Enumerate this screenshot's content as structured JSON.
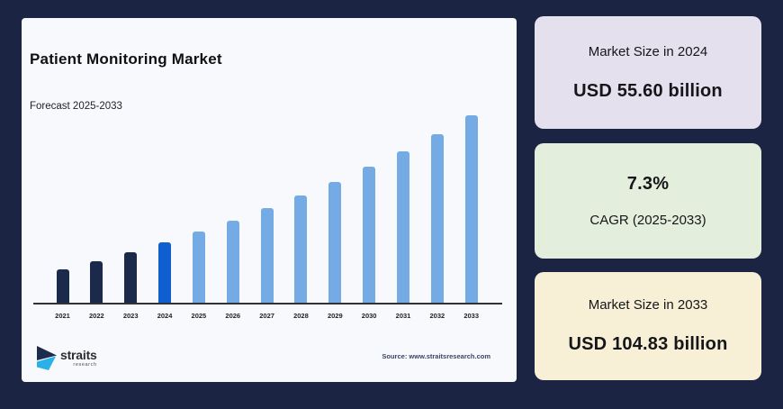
{
  "colors": {
    "background": "#1b2442",
    "panel_bg": "#f7f9fc",
    "axis": "#333333",
    "tick_label": "#222222",
    "title_text": "#111111",
    "card_2024_bg": "#e4e0ed",
    "card_cagr_bg": "#e4eedc",
    "card_2033_bg": "#f7f0d6",
    "card_text": "#16161a",
    "logo_navy": "#1d2b4c",
    "logo_cyan": "#2ab1e8",
    "source_text": "#3a4566"
  },
  "panel": {
    "title": "Patient Monitoring Market",
    "subtitle": "Forecast 2025-2033",
    "source": "Source: www.straitsresearch.com",
    "logo": {
      "name": "straits",
      "sub": "research"
    }
  },
  "chart_data": {
    "type": "bar",
    "title": "Patient Monitoring Market",
    "subtitle": "Forecast 2025-2033",
    "unit": "USD billion",
    "categories": [
      "2021",
      "2022",
      "2023",
      "2024",
      "2025",
      "2026",
      "2027",
      "2028",
      "2029",
      "2030",
      "2031",
      "2032",
      "2033"
    ],
    "values": [
      45.0,
      48.29,
      51.82,
      55.6,
      59.66,
      64.02,
      68.69,
      73.7,
      79.08,
      84.86,
      91.05,
      97.7,
      104.83
    ],
    "anchor_values": {
      "2024": "USD 55.60 billion",
      "2033": "USD 104.83 billion",
      "cagr": "7.3%"
    },
    "ylim": [
      32,
      105
    ],
    "grid": false,
    "legend": "none",
    "bar_roles": [
      "historical",
      "historical",
      "historical",
      "base_year",
      "forecast",
      "forecast",
      "forecast",
      "forecast",
      "forecast",
      "forecast",
      "forecast",
      "forecast",
      "forecast"
    ],
    "role_colors": {
      "historical": "#1b2a4a",
      "base_year": "#0f5fd1",
      "forecast": "#74abe5"
    }
  },
  "cards": [
    {
      "label": "Market Size in 2024",
      "value": "USD 55.60 billion"
    },
    {
      "label": "CAGR (2025-2033)",
      "value": "7.3%"
    },
    {
      "label": "Market Size in 2033",
      "value": "USD 104.83 billion"
    }
  ]
}
